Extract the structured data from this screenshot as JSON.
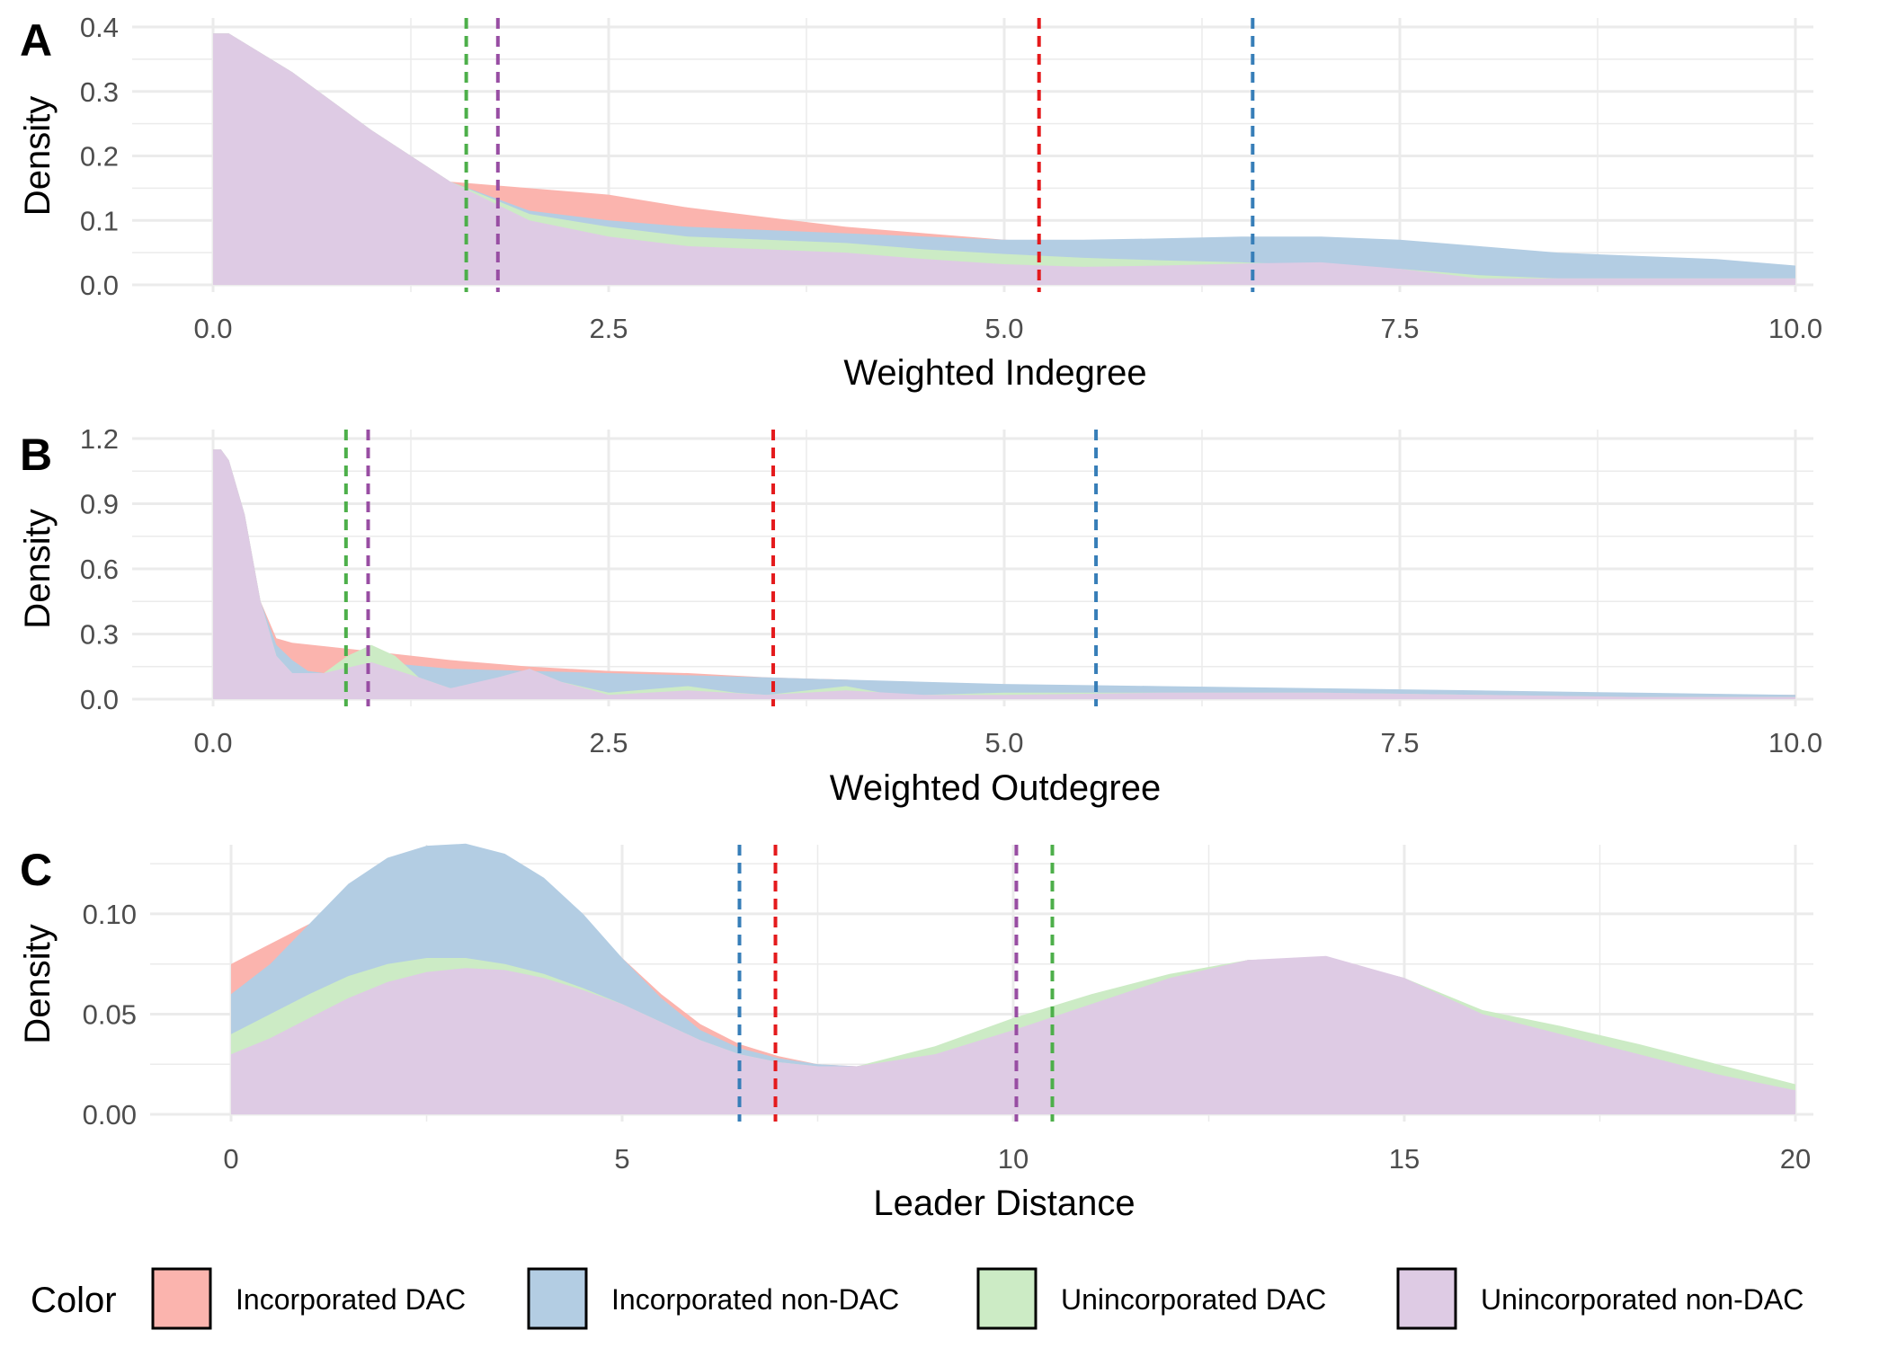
{
  "legend": {
    "title": "Color",
    "items": [
      {
        "label": "Incorporated DAC",
        "color": "#FBB4AE"
      },
      {
        "label": "Incorporated non-DAC",
        "color": "#B3CDE3"
      },
      {
        "label": "Unincorporated DAC",
        "color": "#CCEBC5"
      },
      {
        "label": "Unincorporated non-DAC",
        "color": "#DECBE4"
      }
    ],
    "mean_line_colors": [
      "#E41A1C",
      "#377EB8",
      "#4DAF4A",
      "#984EA3"
    ]
  },
  "chart_data": [
    {
      "panel": "A",
      "type": "area",
      "xlabel": "Weighted Indegree",
      "ylabel": "Density",
      "xlim": [
        0,
        10
      ],
      "ylim": [
        0,
        0.4
      ],
      "xticks": [
        "0.0",
        "2.5",
        "5.0",
        "7.5",
        "10.0"
      ],
      "xtick_values": [
        0,
        2.5,
        5,
        7.5,
        10
      ],
      "yticks": [
        "0.0",
        "0.1",
        "0.2",
        "0.3",
        "0.4"
      ],
      "ytick_values": [
        0,
        0.1,
        0.2,
        0.3,
        0.4
      ],
      "grid": true,
      "series": [
        {
          "name": "Incorporated DAC",
          "x": [
            0,
            0.1,
            0.5,
            1,
            1.5,
            2,
            2.5,
            3,
            3.5,
            4,
            4.5,
            5,
            5.5,
            6,
            6.5,
            7,
            7.5,
            8,
            8.5,
            9,
            9.5,
            10
          ],
          "y": [
            0.39,
            0.39,
            0.33,
            0.24,
            0.16,
            0.15,
            0.14,
            0.12,
            0.105,
            0.09,
            0.08,
            0.07,
            0.065,
            0.06,
            0.05,
            0.045,
            0.03,
            0.02,
            0.015,
            0.015,
            0.015,
            0.015
          ]
        },
        {
          "name": "Incorporated non-DAC",
          "x": [
            0,
            0.1,
            0.5,
            1,
            1.5,
            2,
            2.5,
            3,
            3.5,
            4,
            4.5,
            5,
            5.5,
            6,
            6.5,
            7,
            7.5,
            8,
            8.5,
            9,
            9.5,
            10
          ],
          "y": [
            0.39,
            0.39,
            0.33,
            0.24,
            0.16,
            0.115,
            0.1,
            0.09,
            0.085,
            0.08,
            0.075,
            0.07,
            0.07,
            0.072,
            0.075,
            0.075,
            0.07,
            0.06,
            0.05,
            0.045,
            0.04,
            0.03
          ]
        },
        {
          "name": "Unincorporated DAC",
          "x": [
            0,
            0.1,
            0.5,
            1,
            1.5,
            2,
            2.5,
            3,
            3.5,
            4,
            4.5,
            5,
            5.5,
            6,
            6.5,
            7,
            7.5,
            8,
            8.5,
            9,
            9.5,
            10
          ],
          "y": [
            0.39,
            0.39,
            0.33,
            0.24,
            0.16,
            0.11,
            0.09,
            0.075,
            0.07,
            0.065,
            0.055,
            0.048,
            0.042,
            0.038,
            0.035,
            0.03,
            0.025,
            0.015,
            0.01,
            0.01,
            0.01,
            0.01
          ]
        },
        {
          "name": "Unincorporated non-DAC",
          "x": [
            0,
            0.1,
            0.5,
            1,
            1.5,
            2,
            2.5,
            3,
            3.5,
            4,
            4.5,
            5,
            5.5,
            6,
            6.5,
            7,
            7.5,
            8,
            8.5,
            9,
            9.5,
            10
          ],
          "y": [
            0.39,
            0.39,
            0.33,
            0.24,
            0.16,
            0.1,
            0.075,
            0.06,
            0.055,
            0.05,
            0.04,
            0.032,
            0.028,
            0.03,
            0.033,
            0.035,
            0.025,
            0.01,
            0.01,
            0.01,
            0.01,
            0.01
          ]
        }
      ],
      "mean_lines": [
        {
          "series": "Incorporated DAC",
          "x": 5.22
        },
        {
          "series": "Incorporated non-DAC",
          "x": 6.57
        },
        {
          "series": "Unincorporated DAC",
          "x": 1.6
        },
        {
          "series": "Unincorporated non-DAC",
          "x": 1.8
        }
      ]
    },
    {
      "panel": "B",
      "type": "area",
      "xlabel": "Weighted Outdegree",
      "ylabel": "Density",
      "xlim": [
        0,
        10
      ],
      "ylim": [
        0,
        1.2
      ],
      "xticks": [
        "0.0",
        "2.5",
        "5.0",
        "7.5",
        "10.0"
      ],
      "xtick_values": [
        0,
        2.5,
        5,
        7.5,
        10
      ],
      "yticks": [
        "0.0",
        "0.3",
        "0.6",
        "0.9",
        "1.2"
      ],
      "ytick_values": [
        0,
        0.3,
        0.6,
        0.9,
        1.2
      ],
      "grid": true,
      "series": [
        {
          "name": "Incorporated DAC",
          "x": [
            0,
            0.05,
            0.1,
            0.2,
            0.3,
            0.4,
            0.5,
            1,
            1.5,
            2,
            2.5,
            3,
            3.5,
            4,
            4.5,
            5,
            6,
            7,
            8,
            9,
            10
          ],
          "y": [
            1.15,
            1.15,
            1.1,
            0.85,
            0.45,
            0.28,
            0.26,
            0.22,
            0.18,
            0.15,
            0.13,
            0.12,
            0.1,
            0.09,
            0.07,
            0.06,
            0.05,
            0.04,
            0.03,
            0.02,
            0.02
          ]
        },
        {
          "name": "Incorporated non-DAC",
          "x": [
            0,
            0.05,
            0.1,
            0.2,
            0.3,
            0.4,
            0.5,
            0.6,
            0.7,
            0.8,
            1,
            1.2,
            1.5,
            2,
            2.5,
            3,
            3.5,
            4,
            4.5,
            5,
            6,
            7,
            8,
            9,
            10
          ],
          "y": [
            1.15,
            1.15,
            1.1,
            0.85,
            0.45,
            0.25,
            0.18,
            0.13,
            0.12,
            0.15,
            0.17,
            0.16,
            0.14,
            0.13,
            0.12,
            0.11,
            0.1,
            0.09,
            0.08,
            0.07,
            0.06,
            0.05,
            0.04,
            0.03,
            0.02
          ]
        },
        {
          "name": "Unincorporated DAC",
          "x": [
            0,
            0.05,
            0.1,
            0.2,
            0.3,
            0.4,
            0.5,
            0.7,
            0.85,
            1,
            1.15,
            1.3,
            1.5,
            1.8,
            2,
            2.2,
            2.5,
            3,
            3.3,
            3.5,
            4,
            4.3,
            4.5,
            5,
            6,
            7,
            8,
            9,
            10
          ],
          "y": [
            1.15,
            1.15,
            1.1,
            0.85,
            0.45,
            0.2,
            0.12,
            0.12,
            0.2,
            0.25,
            0.2,
            0.1,
            0.05,
            0.08,
            0.14,
            0.08,
            0.03,
            0.06,
            0.03,
            0.02,
            0.06,
            0.02,
            0.02,
            0.03,
            0.03,
            0.03,
            0.02,
            0.01,
            0.01
          ]
        },
        {
          "name": "Unincorporated non-DAC",
          "x": [
            0,
            0.05,
            0.1,
            0.2,
            0.3,
            0.4,
            0.5,
            0.7,
            1,
            1.3,
            1.5,
            1.8,
            2,
            2.2,
            2.5,
            3,
            3.5,
            4,
            4.5,
            5,
            6,
            7,
            8,
            9,
            10
          ],
          "y": [
            1.15,
            1.15,
            1.1,
            0.85,
            0.45,
            0.2,
            0.12,
            0.12,
            0.17,
            0.1,
            0.05,
            0.1,
            0.14,
            0.08,
            0.02,
            0.04,
            0.02,
            0.04,
            0.02,
            0.02,
            0.03,
            0.03,
            0.02,
            0.01,
            0.01
          ]
        }
      ],
      "mean_lines": [
        {
          "series": "Incorporated DAC",
          "x": 3.54
        },
        {
          "series": "Incorporated non-DAC",
          "x": 5.58
        },
        {
          "series": "Unincorporated DAC",
          "x": 0.84
        },
        {
          "series": "Unincorporated non-DAC",
          "x": 0.98
        }
      ]
    },
    {
      "panel": "C",
      "type": "area",
      "xlabel": "Leader Distance",
      "ylabel": "Density",
      "xlim": [
        0,
        20
      ],
      "ylim": [
        0,
        0.13
      ],
      "xticks": [
        "0",
        "5",
        "10",
        "15",
        "20"
      ],
      "xtick_values": [
        0,
        5,
        10,
        15,
        20
      ],
      "yticks": [
        "0.00",
        "0.05",
        "0.10"
      ],
      "ytick_values": [
        0,
        0.05,
        0.1
      ],
      "grid": true,
      "series": [
        {
          "name": "Incorporated DAC",
          "x": [
            0,
            0.5,
            1,
            1.5,
            2,
            2.5,
            3,
            3.5,
            4,
            4.5,
            5,
            5.5,
            6,
            6.5,
            7,
            7.5,
            8,
            9,
            10,
            11,
            12,
            13,
            14,
            15,
            16,
            17,
            18,
            19,
            20
          ],
          "y": [
            0.075,
            0.085,
            0.095,
            0.105,
            0.115,
            0.122,
            0.125,
            0.12,
            0.11,
            0.095,
            0.078,
            0.06,
            0.045,
            0.035,
            0.029,
            0.025,
            0.024,
            0.03,
            0.042,
            0.055,
            0.068,
            0.077,
            0.078,
            0.068,
            0.05,
            0.04,
            0.03,
            0.02,
            0.012
          ]
        },
        {
          "name": "Incorporated non-DAC",
          "x": [
            0,
            0.5,
            1,
            1.5,
            2,
            2.5,
            3,
            3.5,
            4,
            4.5,
            5,
            5.5,
            6,
            6.5,
            7,
            7.5,
            8,
            9,
            10,
            11,
            12,
            13,
            14,
            15,
            16,
            17,
            18,
            19,
            20
          ],
          "y": [
            0.06,
            0.075,
            0.095,
            0.115,
            0.128,
            0.134,
            0.135,
            0.13,
            0.118,
            0.1,
            0.078,
            0.058,
            0.042,
            0.033,
            0.028,
            0.025,
            0.024,
            0.03,
            0.042,
            0.055,
            0.068,
            0.077,
            0.078,
            0.068,
            0.05,
            0.04,
            0.03,
            0.02,
            0.012
          ]
        },
        {
          "name": "Unincorporated DAC",
          "x": [
            0,
            0.5,
            1,
            1.5,
            2,
            2.5,
            3,
            3.5,
            4,
            4.5,
            5,
            5.5,
            6,
            6.5,
            7,
            7.5,
            8,
            9,
            10,
            11,
            12,
            13,
            14,
            15,
            16,
            17,
            18,
            19,
            20
          ],
          "y": [
            0.04,
            0.05,
            0.06,
            0.069,
            0.075,
            0.078,
            0.078,
            0.075,
            0.07,
            0.063,
            0.055,
            0.046,
            0.037,
            0.03,
            0.026,
            0.024,
            0.024,
            0.034,
            0.048,
            0.06,
            0.07,
            0.077,
            0.078,
            0.068,
            0.052,
            0.044,
            0.035,
            0.025,
            0.015
          ]
        },
        {
          "name": "Unincorporated non-DAC",
          "x": [
            0,
            0.5,
            1,
            1.5,
            2,
            2.5,
            3,
            3.5,
            4,
            4.5,
            5,
            5.5,
            6,
            6.5,
            7,
            7.5,
            8,
            9,
            10,
            11,
            12,
            13,
            14,
            15,
            16,
            17,
            18,
            19,
            20
          ],
          "y": [
            0.03,
            0.038,
            0.048,
            0.058,
            0.066,
            0.071,
            0.073,
            0.072,
            0.068,
            0.062,
            0.055,
            0.046,
            0.037,
            0.03,
            0.026,
            0.024,
            0.024,
            0.03,
            0.042,
            0.055,
            0.068,
            0.077,
            0.079,
            0.068,
            0.05,
            0.04,
            0.03,
            0.02,
            0.012
          ]
        }
      ],
      "mean_lines": [
        {
          "series": "Incorporated DAC",
          "x": 6.96
        },
        {
          "series": "Incorporated non-DAC",
          "x": 6.5
        },
        {
          "series": "Unincorporated DAC",
          "x": 10.5
        },
        {
          "series": "Unincorporated non-DAC",
          "x": 10.04
        }
      ]
    }
  ]
}
